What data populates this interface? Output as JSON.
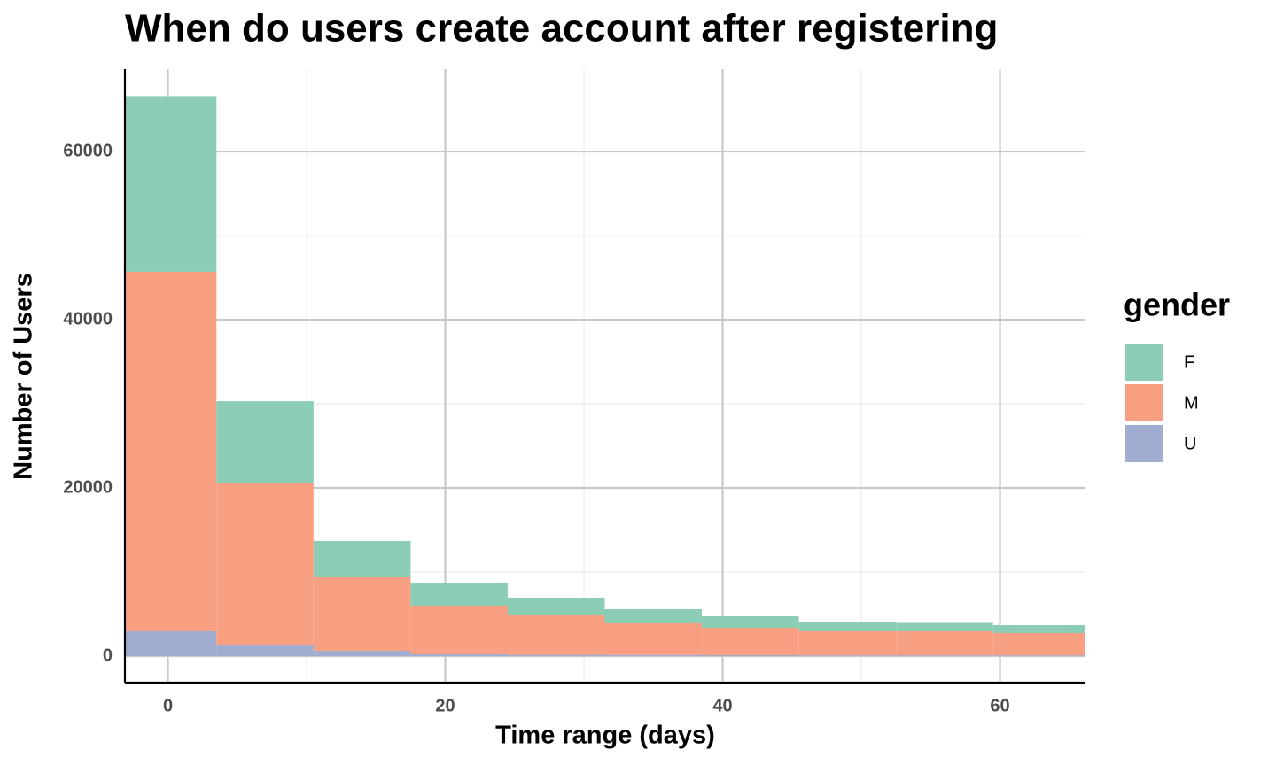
{
  "chart_data": {
    "type": "stacked_histogram",
    "title": "When do users create account after registering",
    "x_label": "Time range (days)",
    "y_label": "Number of Users",
    "bins": [
      -3.5,
      3.5,
      10.5,
      17.5,
      24.5,
      31.5,
      38.5,
      45.5,
      52.5,
      59.5,
      66.5
    ],
    "series": [
      {
        "name": "U",
        "color": "#a0acd0",
        "values": [
          2950,
          1370,
          630,
          210,
          150,
          120,
          100,
          90,
          90,
          80
        ]
      },
      {
        "name": "M",
        "color": "#f9a083",
        "values": [
          42750,
          19260,
          8740,
          5790,
          4690,
          3780,
          3270,
          2860,
          2860,
          2660
        ]
      },
      {
        "name": "F",
        "color": "#8ccdb5",
        "values": [
          20900,
          9680,
          4320,
          2630,
          2110,
          1680,
          1370,
          1050,
          1000,
          940
        ]
      }
    ],
    "legend_title": "gender",
    "legend_order": [
      "F",
      "M",
      "U"
    ],
    "legend": "right",
    "xlim": [
      -3.1,
      66.1
    ],
    "ylim": [
      -3160,
      69800
    ],
    "xticks": [
      0,
      20,
      40,
      60
    ],
    "yticks": [
      0,
      20000,
      40000,
      60000
    ],
    "minor_xticks": [
      10,
      30,
      50
    ],
    "minor_yticks": [
      10000,
      30000,
      50000
    ],
    "grid": true
  }
}
